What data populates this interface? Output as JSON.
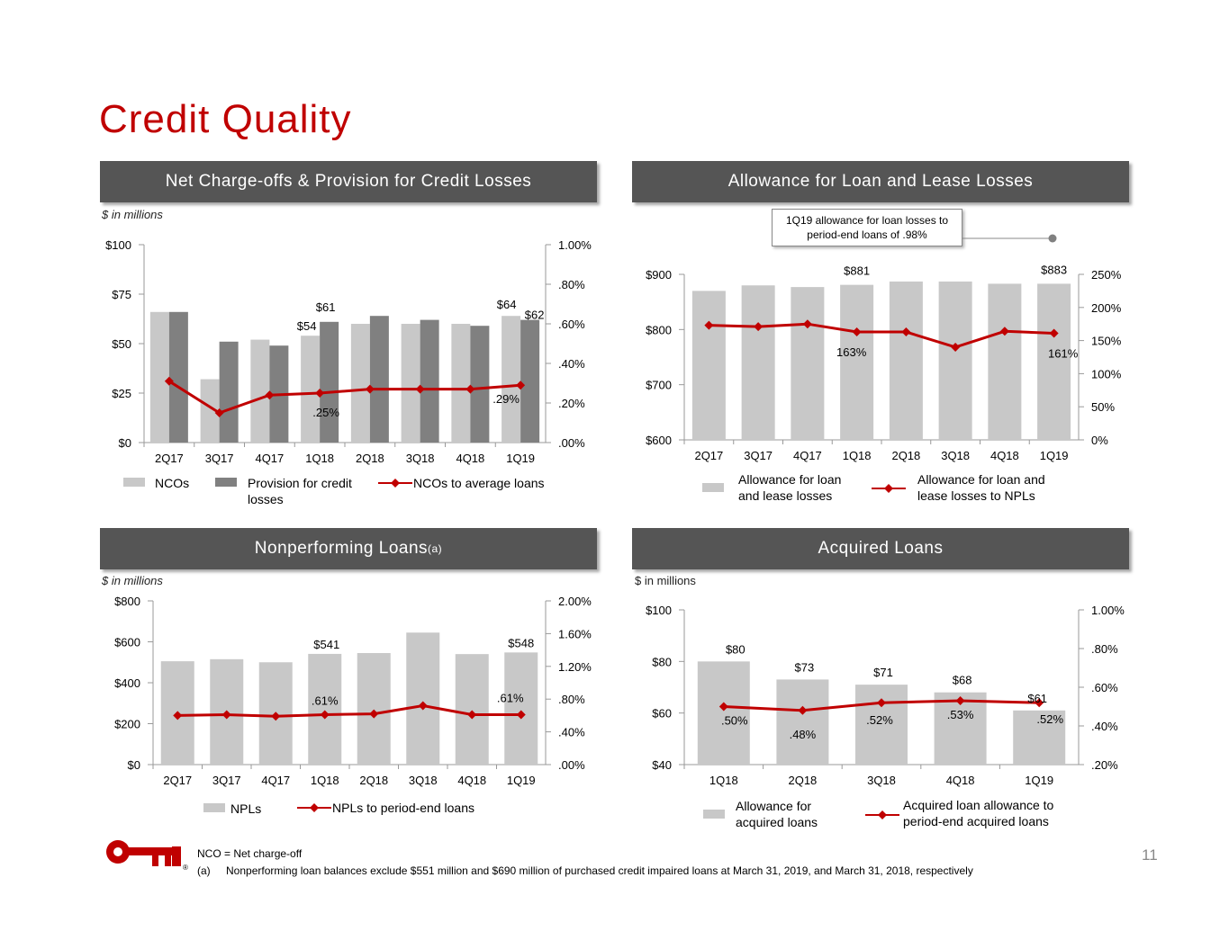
{
  "page_title": "Credit Quality",
  "page_number": "11",
  "brand_color": "#c00000",
  "panels": {
    "nco": {
      "header": "Net Charge-offs & Provision for Credit Losses",
      "unit": "$ in millions"
    },
    "alll": {
      "header": "Allowance for Loan and Lease Losses",
      "callout_line1": "1Q19 allowance for loan losses to",
      "callout_line2": "period-end loans of .98%"
    },
    "npl": {
      "header": "Nonperforming Loans",
      "header_sup": "(a)",
      "unit": "$ in millions"
    },
    "acq": {
      "header": "Acquired Loans",
      "unit": "$ in millions"
    }
  },
  "footnotes": {
    "nco_def": "NCO = Net charge-off",
    "a_marker": "(a)",
    "a_text": "Nonperforming loan balances exclude $551 million and $690 million of purchased credit impaired loans at March 31, 2019, and March 31, 2018, respectively"
  },
  "chart_data": [
    {
      "id": "nco",
      "type": "bar",
      "categories": [
        "2Q17",
        "3Q17",
        "4Q17",
        "1Q18",
        "2Q18",
        "3Q18",
        "4Q18",
        "1Q19"
      ],
      "series": [
        {
          "name": "NCOs",
          "kind": "bar",
          "color": "#c8c8c8",
          "values": [
            66,
            32,
            52,
            54,
            60,
            60,
            60,
            64
          ]
        },
        {
          "name": "Provision for credit losses",
          "kind": "bar",
          "color": "#808080",
          "values": [
            66,
            51,
            49,
            61,
            64,
            62,
            59,
            62
          ]
        },
        {
          "name": "NCOs to average loans",
          "kind": "line",
          "color": "#c00000",
          "axis": "right",
          "values": [
            0.31,
            0.15,
            0.24,
            0.25,
            0.27,
            0.27,
            0.27,
            0.29
          ]
        }
      ],
      "left_axis": {
        "range": [
          0,
          100
        ],
        "ticks": [
          0,
          25,
          50,
          75,
          100
        ],
        "tick_labels": [
          "$0",
          "$25",
          "$50",
          "$75",
          "$100"
        ]
      },
      "right_axis": {
        "range": [
          0,
          1.0
        ],
        "ticks": [
          0,
          0.2,
          0.4,
          0.6,
          0.8,
          1.0
        ],
        "tick_labels": [
          ".00%",
          ".20%",
          ".40%",
          ".60%",
          ".80%",
          "1.00%"
        ]
      },
      "data_labels": [
        {
          "series": 0,
          "index": 3,
          "text": "$54"
        },
        {
          "series": 1,
          "index": 3,
          "text": "$61"
        },
        {
          "series": 0,
          "index": 7,
          "text": "$64"
        },
        {
          "series": 1,
          "index": 7,
          "text": "$62"
        },
        {
          "series": 2,
          "index": 3,
          "text": ".25%"
        },
        {
          "series": 2,
          "index": 7,
          "text": ".29%"
        }
      ],
      "legend": [
        "NCOs",
        "Provision for credit losses",
        "NCOs to average loans"
      ]
    },
    {
      "id": "alll",
      "type": "bar",
      "categories": [
        "2Q17",
        "3Q17",
        "4Q17",
        "1Q18",
        "2Q18",
        "3Q18",
        "4Q18",
        "1Q19"
      ],
      "series": [
        {
          "name": "Allowance for loan and lease losses",
          "kind": "bar",
          "color": "#c8c8c8",
          "values": [
            870,
            880,
            877,
            881,
            887,
            887,
            883,
            883
          ]
        },
        {
          "name": "Allowance for loan and lease losses to NPLs",
          "kind": "line",
          "color": "#c00000",
          "axis": "right",
          "values": [
            173,
            171,
            175,
            163,
            163,
            140,
            164,
            161
          ]
        }
      ],
      "left_axis": {
        "range": [
          600,
          900
        ],
        "ticks": [
          600,
          700,
          800,
          900
        ],
        "tick_labels": [
          "$600",
          "$700",
          "$800",
          "$900"
        ]
      },
      "right_axis": {
        "range": [
          0,
          250
        ],
        "ticks": [
          0,
          50,
          100,
          150,
          200,
          250
        ],
        "tick_labels": [
          "0%",
          "50%",
          "100%",
          "150%",
          "200%",
          "250%"
        ]
      },
      "data_labels": [
        {
          "series": 0,
          "index": 3,
          "text": "$881"
        },
        {
          "series": 0,
          "index": 7,
          "text": "$883"
        },
        {
          "series": 1,
          "index": 3,
          "text": "163%"
        },
        {
          "series": 1,
          "index": 7,
          "text": "161%"
        }
      ],
      "legend": [
        "Allowance for loan and lease losses",
        "Allowance for loan and lease losses to NPLs"
      ]
    },
    {
      "id": "npl",
      "type": "bar",
      "categories": [
        "2Q17",
        "3Q17",
        "4Q17",
        "1Q18",
        "2Q18",
        "3Q18",
        "4Q18",
        "1Q19"
      ],
      "series": [
        {
          "name": "NPLs",
          "kind": "bar",
          "color": "#c8c8c8",
          "values": [
            505,
            515,
            500,
            541,
            545,
            645,
            540,
            548
          ]
        },
        {
          "name": "NPLs to period-end loans",
          "kind": "line",
          "color": "#c00000",
          "axis": "right",
          "values": [
            0.6,
            0.61,
            0.59,
            0.61,
            0.62,
            0.72,
            0.61,
            0.61
          ]
        }
      ],
      "left_axis": {
        "range": [
          0,
          800
        ],
        "ticks": [
          0,
          200,
          400,
          600,
          800
        ],
        "tick_labels": [
          "$0",
          "$200",
          "$400",
          "$600",
          "$800"
        ]
      },
      "right_axis": {
        "range": [
          0,
          2.0
        ],
        "ticks": [
          0,
          0.4,
          0.8,
          1.2,
          1.6,
          2.0
        ],
        "tick_labels": [
          ".00%",
          ".40%",
          ".80%",
          "1.20%",
          "1.60%",
          "2.00%"
        ]
      },
      "data_labels": [
        {
          "series": 0,
          "index": 3,
          "text": "$541"
        },
        {
          "series": 0,
          "index": 7,
          "text": "$548"
        },
        {
          "series": 1,
          "index": 3,
          "text": ".61%"
        },
        {
          "series": 1,
          "index": 7,
          "text": ".61%"
        }
      ],
      "legend": [
        "NPLs",
        "NPLs to period-end loans"
      ]
    },
    {
      "id": "acq",
      "type": "bar",
      "categories": [
        "1Q18",
        "2Q18",
        "3Q18",
        "4Q18",
        "1Q19"
      ],
      "series": [
        {
          "name": "Allowance for acquired loans",
          "kind": "bar",
          "color": "#c8c8c8",
          "values": [
            80,
            73,
            71,
            68,
            61
          ]
        },
        {
          "name": "Acquired loan allowance to period-end acquired loans",
          "kind": "line",
          "color": "#c00000",
          "axis": "right",
          "values": [
            0.5,
            0.48,
            0.52,
            0.53,
            0.52
          ]
        }
      ],
      "left_axis": {
        "range": [
          40,
          100
        ],
        "ticks": [
          40,
          60,
          80,
          100
        ],
        "tick_labels": [
          "$40",
          "$60",
          "$80",
          "$100"
        ]
      },
      "right_axis": {
        "range": [
          0.2,
          1.0
        ],
        "ticks": [
          0.2,
          0.4,
          0.6,
          0.8,
          1.0
        ],
        "tick_labels": [
          ".20%",
          ".40%",
          ".60%",
          ".80%",
          "1.00%"
        ]
      },
      "data_labels": [
        {
          "series": 0,
          "index": 0,
          "text": "$80"
        },
        {
          "series": 0,
          "index": 1,
          "text": "$73"
        },
        {
          "series": 0,
          "index": 2,
          "text": "$71"
        },
        {
          "series": 0,
          "index": 3,
          "text": "$68"
        },
        {
          "series": 0,
          "index": 4,
          "text": "$61"
        },
        {
          "series": 1,
          "index": 0,
          "text": ".50%"
        },
        {
          "series": 1,
          "index": 1,
          "text": ".48%"
        },
        {
          "series": 1,
          "index": 2,
          "text": ".52%"
        },
        {
          "series": 1,
          "index": 3,
          "text": ".53%"
        },
        {
          "series": 1,
          "index": 4,
          "text": ".52%"
        }
      ],
      "legend": [
        "Allowance for acquired loans",
        "Acquired loan allowance to period-end acquired loans"
      ]
    }
  ]
}
